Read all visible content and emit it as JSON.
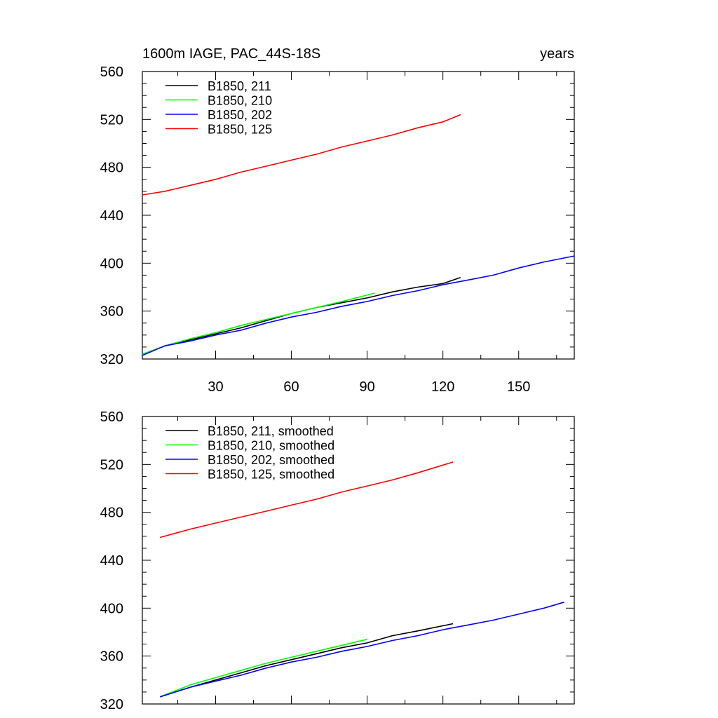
{
  "figure": {
    "title_left": "1600m IAGE, PAC_44S-18S",
    "title_right": "years"
  },
  "chart_data": [
    {
      "type": "line",
      "panel": "top",
      "xlim": [
        1,
        172
      ],
      "ylim": [
        320,
        560
      ],
      "xticks": [
        30,
        60,
        90,
        120,
        150
      ],
      "xtick_labels": [
        "30",
        "60",
        "90",
        "120",
        "150"
      ],
      "yticks": [
        320,
        360,
        400,
        440,
        480,
        520,
        560
      ],
      "ytick_labels": [
        "320",
        "360",
        "400",
        "440",
        "480",
        "520",
        "560"
      ],
      "show_xtick_labels": true,
      "legend": "top-left",
      "series": [
        {
          "name": "B1850, 211",
          "color": "#000000",
          "x": [
            1,
            10,
            20,
            30,
            40,
            50,
            60,
            70,
            80,
            90,
            100,
            110,
            120,
            127
          ],
          "y": [
            324,
            331,
            336,
            341,
            346,
            352,
            358,
            363,
            367,
            371,
            376,
            380,
            383,
            388
          ]
        },
        {
          "name": "B1850, 210",
          "color": "#00ff00",
          "x": [
            1,
            10,
            20,
            30,
            40,
            50,
            60,
            70,
            80,
            93
          ],
          "y": [
            324,
            331,
            337,
            342,
            348,
            353,
            358,
            363,
            368,
            375
          ]
        },
        {
          "name": "B1850, 202",
          "color": "#0000ff",
          "x": [
            1,
            10,
            20,
            30,
            40,
            50,
            60,
            70,
            80,
            90,
            100,
            110,
            120,
            130,
            140,
            150,
            160,
            172
          ],
          "y": [
            323,
            331,
            335,
            340,
            344,
            350,
            355,
            359,
            364,
            368,
            373,
            377,
            382,
            386,
            390,
            396,
            401,
            406
          ]
        },
        {
          "name": "B1850, 125",
          "color": "#ff0000",
          "x": [
            1,
            10,
            20,
            30,
            40,
            50,
            60,
            70,
            80,
            90,
            100,
            110,
            120,
            127
          ],
          "y": [
            457,
            460,
            465,
            470,
            476,
            481,
            486,
            491,
            497,
            502,
            507,
            513,
            518,
            524
          ]
        }
      ]
    },
    {
      "type": "line",
      "panel": "bottom",
      "xlim": [
        1,
        172
      ],
      "ylim": [
        320,
        560
      ],
      "xticks": [
        30,
        60,
        90,
        120,
        150
      ],
      "xtick_labels": [],
      "yticks": [
        320,
        360,
        400,
        440,
        480,
        520,
        560
      ],
      "ytick_labels": [
        "320",
        "360",
        "400",
        "440",
        "480",
        "520",
        "560"
      ],
      "show_xtick_labels": false,
      "legend": "top-left",
      "series": [
        {
          "name": "B1850, 211, smoothed",
          "color": "#000000",
          "x": [
            8,
            20,
            30,
            40,
            50,
            60,
            70,
            80,
            90,
            100,
            110,
            124
          ],
          "y": [
            326,
            334,
            340,
            346,
            352,
            357,
            362,
            367,
            371,
            377,
            381,
            387
          ]
        },
        {
          "name": "B1850, 210, smoothed",
          "color": "#00ff00",
          "x": [
            8,
            20,
            30,
            40,
            50,
            60,
            70,
            80,
            90
          ],
          "y": [
            326,
            336,
            342,
            348,
            354,
            359,
            364,
            369,
            374
          ]
        },
        {
          "name": "B1850, 202, smoothed",
          "color": "#0000ff",
          "x": [
            8,
            20,
            30,
            40,
            50,
            60,
            70,
            80,
            90,
            100,
            110,
            120,
            130,
            140,
            150,
            160,
            168
          ],
          "y": [
            326,
            334,
            339,
            344,
            350,
            355,
            359,
            364,
            368,
            373,
            377,
            382,
            386,
            390,
            395,
            400,
            405
          ]
        },
        {
          "name": "B1850, 125, smoothed",
          "color": "#ff0000",
          "x": [
            8,
            20,
            30,
            40,
            50,
            60,
            70,
            80,
            90,
            100,
            110,
            124
          ],
          "y": [
            459,
            466,
            471,
            476,
            481,
            486,
            491,
            497,
            502,
            507,
            513,
            522
          ]
        }
      ]
    }
  ]
}
